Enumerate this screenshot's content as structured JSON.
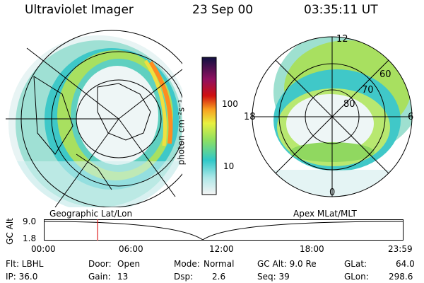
{
  "header": {
    "instrument": "Ultraviolet Imager",
    "date": "23 Sep 00",
    "time": "03:35:11 UT"
  },
  "panels": {
    "left_label": "Geographic Lat/Lon",
    "right_label": "Apex MLat/MLT"
  },
  "colorbar": {
    "unit_label": "photon cm⁻²s⁻¹",
    "ticks": [
      "100",
      "10"
    ]
  },
  "polar_labels": {
    "top": "12",
    "left": "18",
    "right": "6",
    "bottom": "0",
    "lat60": "60",
    "lat70": "70",
    "lat80": "80"
  },
  "alt_plot": {
    "ylabel": "GC Alt",
    "ymax": "9.0",
    "ymin": "1.8",
    "xticks": [
      "00:00",
      "06:00",
      "12:00",
      "18:00",
      "23:59"
    ],
    "current_marker_hours": 3.59
  },
  "info": {
    "filter": "Flt: LBHL",
    "door_label": "Door:",
    "door_value": "Open",
    "mode_label": "Mode:",
    "mode_value": "Normal",
    "gcalt": "GC Alt: 9.0 Re",
    "glat_label": "GLat:",
    "glat_value": "64.0",
    "ip": "IP: 36.0",
    "gain_label": "Gain:",
    "gain_value": "13",
    "dsp_label": "Dsp:",
    "dsp_value": "2.6",
    "seq": "Seq: 39",
    "glon_label": "GLon:",
    "glon_value": "298.6"
  },
  "colors": {
    "marker": "#e02020",
    "line": "#000000"
  }
}
